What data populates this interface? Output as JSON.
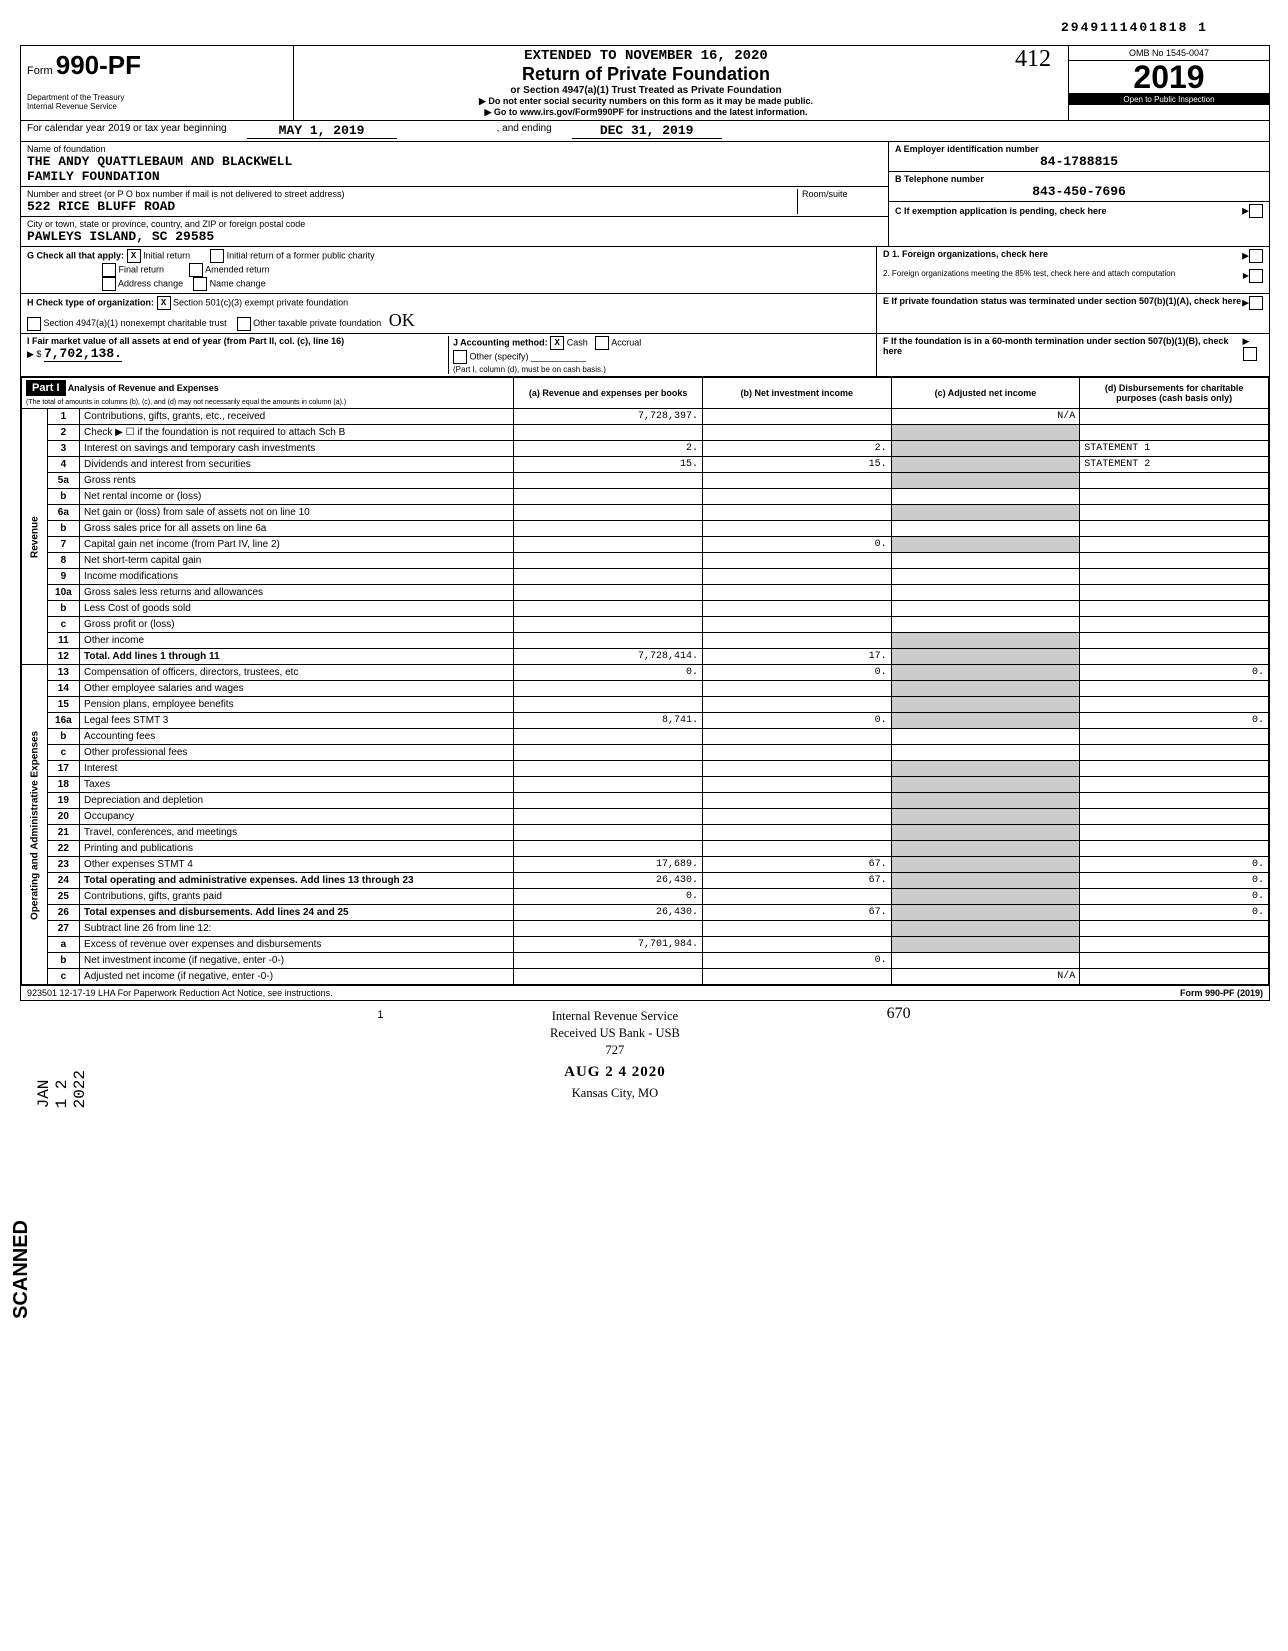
{
  "top_number": "2949111401818 1",
  "form": {
    "form_label": "Form",
    "form_number": "990-PF",
    "dept": "Department of the Treasury\nInternal Revenue Service",
    "extended": "EXTENDED TO NOVEMBER 16, 2020",
    "title": "Return of Private Foundation",
    "subtitle1": "or Section 4947(a)(1) Trust Treated as Private Foundation",
    "subtitle2": "▶ Do not enter social security numbers on this form as it may be made public.",
    "subtitle3": "▶ Go to www.irs.gov/Form990PF for instructions and the latest information.",
    "omb": "OMB No 1545-0047",
    "year": "2019",
    "inspection": "Open to Public Inspection"
  },
  "cal_year": {
    "cal_label": "For calendar year 2019 or tax year beginning",
    "begin": "MAY 1, 2019",
    "mid": ", and ending",
    "end": "DEC 31, 2019"
  },
  "entity": {
    "name_label": "Name of foundation",
    "name1": "THE ANDY QUATTLEBAUM AND BLACKWELL",
    "name2": "FAMILY FOUNDATION",
    "addr_label": "Number and street (or P O box number if mail is not delivered to street address)",
    "addr": "522 RICE BLUFF ROAD",
    "room_label": "Room/suite",
    "city_label": "City or town, state or province, country, and ZIP or foreign postal code",
    "city": "PAWLEYS ISLAND, SC  29585",
    "ein_label": "A Employer identification number",
    "ein": "84-1788815",
    "phone_label": "B Telephone number",
    "phone": "843-450-7696",
    "c_label": "C If exemption application is pending, check here"
  },
  "g": {
    "label": "G Check all that apply:",
    "initial": "Initial return",
    "initial_former": "Initial return of a former public charity",
    "final": "Final return",
    "amended": "Amended return",
    "addr_change": "Address change",
    "name_change": "Name change"
  },
  "d": {
    "d1": "D 1. Foreign organizations, check here",
    "d2": "2. Foreign organizations meeting the 85% test, check here and attach computation"
  },
  "h": {
    "label": "H Check type of organization:",
    "opt1": "Section 501(c)(3) exempt private foundation",
    "opt2": "Section 4947(a)(1) nonexempt charitable trust",
    "opt3": "Other taxable private foundation"
  },
  "e": {
    "label": "E If private foundation status was terminated under section 507(b)(1)(A), check here"
  },
  "i": {
    "label": "I Fair market value of all assets at end of year (from Part II, col. (c), line 16)",
    "amount": "7,702,138.",
    "arrow": "▶ $"
  },
  "j": {
    "label": "J Accounting method:",
    "cash": "Cash",
    "accrual": "Accrual",
    "other": "Other (specify)",
    "note": "(Part I, column (d), must be on cash basis.)"
  },
  "f": {
    "label": "F If the foundation is in a 60-month termination under section 507(b)(1)(B), check here"
  },
  "part1": {
    "header": "Part I",
    "title": "Analysis of Revenue and Expenses",
    "subtitle": "(The total of amounts in columns (b), (c), and (d) may not necessarily equal the amounts in column (a).)",
    "col_a": "(a) Revenue and expenses per books",
    "col_b": "(b) Net investment income",
    "col_c": "(c) Adjusted net income",
    "col_d": "(d) Disbursements for charitable purposes (cash basis only)"
  },
  "rows": [
    {
      "no": "1",
      "desc": "Contributions, gifts, grants, etc., received",
      "a": "7,728,397.",
      "b": "",
      "c": "N/A",
      "d": ""
    },
    {
      "no": "2",
      "desc": "Check ▶ ☐ if the foundation is not required to attach Sch B",
      "a": "",
      "b": "",
      "c": "",
      "d": ""
    },
    {
      "no": "3",
      "desc": "Interest on savings and temporary cash investments",
      "a": "2.",
      "b": "2.",
      "c": "",
      "d": "STATEMENT 1"
    },
    {
      "no": "4",
      "desc": "Dividends and interest from securities",
      "a": "15.",
      "b": "15.",
      "c": "",
      "d": "STATEMENT 2"
    },
    {
      "no": "5a",
      "desc": "Gross rents",
      "a": "",
      "b": "",
      "c": "",
      "d": ""
    },
    {
      "no": "b",
      "desc": "Net rental income or (loss)",
      "a": "",
      "b": "",
      "c": "",
      "d": ""
    },
    {
      "no": "6a",
      "desc": "Net gain or (loss) from sale of assets not on line 10",
      "a": "",
      "b": "",
      "c": "",
      "d": ""
    },
    {
      "no": "b",
      "desc": "Gross sales price for all assets on line 6a",
      "a": "",
      "b": "",
      "c": "",
      "d": ""
    },
    {
      "no": "7",
      "desc": "Capital gain net income (from Part IV, line 2)",
      "a": "",
      "b": "0.",
      "c": "",
      "d": ""
    },
    {
      "no": "8",
      "desc": "Net short-term capital gain",
      "a": "",
      "b": "",
      "c": "",
      "d": ""
    },
    {
      "no": "9",
      "desc": "Income modifications",
      "a": "",
      "b": "",
      "c": "",
      "d": ""
    },
    {
      "no": "10a",
      "desc": "Gross sales less returns and allowances",
      "a": "",
      "b": "",
      "c": "",
      "d": ""
    },
    {
      "no": "b",
      "desc": "Less Cost of goods sold",
      "a": "",
      "b": "",
      "c": "",
      "d": ""
    },
    {
      "no": "c",
      "desc": "Gross profit or (loss)",
      "a": "",
      "b": "",
      "c": "",
      "d": ""
    },
    {
      "no": "11",
      "desc": "Other income",
      "a": "",
      "b": "",
      "c": "",
      "d": ""
    },
    {
      "no": "12",
      "desc": "Total. Add lines 1 through 11",
      "a": "7,728,414.",
      "b": "17.",
      "c": "",
      "d": ""
    },
    {
      "no": "13",
      "desc": "Compensation of officers, directors, trustees, etc",
      "a": "0.",
      "b": "0.",
      "c": "",
      "d": "0."
    },
    {
      "no": "14",
      "desc": "Other employee salaries and wages",
      "a": "",
      "b": "",
      "c": "",
      "d": ""
    },
    {
      "no": "15",
      "desc": "Pension plans, employee benefits",
      "a": "",
      "b": "",
      "c": "",
      "d": ""
    },
    {
      "no": "16a",
      "desc": "Legal fees                              STMT 3",
      "a": "8,741.",
      "b": "0.",
      "c": "",
      "d": "0."
    },
    {
      "no": "b",
      "desc": "Accounting fees",
      "a": "",
      "b": "",
      "c": "",
      "d": ""
    },
    {
      "no": "c",
      "desc": "Other professional fees",
      "a": "",
      "b": "",
      "c": "",
      "d": ""
    },
    {
      "no": "17",
      "desc": "Interest",
      "a": "",
      "b": "",
      "c": "",
      "d": ""
    },
    {
      "no": "18",
      "desc": "Taxes",
      "a": "",
      "b": "",
      "c": "",
      "d": ""
    },
    {
      "no": "19",
      "desc": "Depreciation and depletion",
      "a": "",
      "b": "",
      "c": "",
      "d": ""
    },
    {
      "no": "20",
      "desc": "Occupancy",
      "a": "",
      "b": "",
      "c": "",
      "d": ""
    },
    {
      "no": "21",
      "desc": "Travel, conferences, and meetings",
      "a": "",
      "b": "",
      "c": "",
      "d": ""
    },
    {
      "no": "22",
      "desc": "Printing and publications",
      "a": "",
      "b": "",
      "c": "",
      "d": ""
    },
    {
      "no": "23",
      "desc": "Other expenses                      STMT 4",
      "a": "17,689.",
      "b": "67.",
      "c": "",
      "d": "0."
    },
    {
      "no": "24",
      "desc": "Total operating and administrative expenses. Add lines 13 through 23",
      "a": "26,430.",
      "b": "67.",
      "c": "",
      "d": "0."
    },
    {
      "no": "25",
      "desc": "Contributions, gifts, grants paid",
      "a": "0.",
      "b": "",
      "c": "",
      "d": "0."
    },
    {
      "no": "26",
      "desc": "Total expenses and disbursements. Add lines 24 and 25",
      "a": "26,430.",
      "b": "67.",
      "c": "",
      "d": "0."
    },
    {
      "no": "27",
      "desc": "Subtract line 26 from line 12:",
      "a": "",
      "b": "",
      "c": "",
      "d": ""
    },
    {
      "no": "a",
      "desc": "Excess of revenue over expenses and disbursements",
      "a": "7,701,984.",
      "b": "",
      "c": "",
      "d": ""
    },
    {
      "no": "b",
      "desc": "Net investment income (if negative, enter -0-)",
      "a": "",
      "b": "0.",
      "c": "",
      "d": ""
    },
    {
      "no": "c",
      "desc": "Adjusted net income (if negative, enter -0-)",
      "a": "",
      "b": "",
      "c": "N/A",
      "d": ""
    }
  ],
  "section_labels": {
    "revenue": "Revenue",
    "expenses": "Operating and Administrative Expenses"
  },
  "footer": {
    "left": "923501 12-17-19  LHA  For Paperwork Reduction Act Notice, see instructions.",
    "right": "Form 990-PF (2019)",
    "page": "1"
  },
  "stamps": {
    "irs1": "Internal Revenue Service",
    "irs2": "Received US Bank - USB",
    "irs3": "727",
    "irs4": "AUG 2 4 2020",
    "irs5": "Kansas City, MO",
    "scanned": "SCANNED",
    "jan": "JAN 1 2 2022",
    "handwritten_412": "412",
    "handwritten_ok": "OK",
    "handwritten_670": "670"
  }
}
